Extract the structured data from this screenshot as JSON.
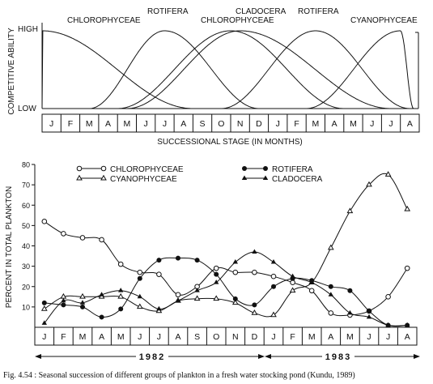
{
  "chart_data": [
    {
      "type": "line",
      "ylabel": "COMPETITIVE ABILITY",
      "xlabel": "SUCCESSIONAL STAGE (IN MONTHS)",
      "y_ticks": [
        "HIGH",
        "LOW"
      ],
      "categories": [
        "J",
        "F",
        "M",
        "A",
        "M",
        "J",
        "J",
        "A",
        "S",
        "O",
        "N",
        "D",
        "J",
        "F",
        "M",
        "A",
        "M",
        "J",
        "J",
        "A"
      ],
      "series": [
        {
          "name": "CHLOROPHYCEAE",
          "peak_months": [
            0,
            10
          ]
        },
        {
          "name": "ROTIFERA",
          "peak_months": [
            6.5,
            14.5
          ]
        },
        {
          "name": "CLADOCERA",
          "peak_months": [
            10.5
          ]
        },
        {
          "name": "CYANOPHYCEAE",
          "peak_months": [
            19
          ]
        }
      ]
    },
    {
      "type": "line",
      "ylabel": "PERCENT IN TOTAL PLANKTON",
      "xlabel": "",
      "ylim": [
        0,
        80
      ],
      "y_ticks": [
        10,
        20,
        30,
        40,
        50,
        60,
        70,
        80
      ],
      "categories": [
        "J",
        "F",
        "M",
        "A",
        "M",
        "J",
        "J",
        "A",
        "S",
        "O",
        "N",
        "D",
        "J",
        "F",
        "M",
        "A",
        "M",
        "J",
        "J",
        "A"
      ],
      "years": [
        "1982",
        "1983"
      ],
      "series": [
        {
          "name": "CHLOROPHYCEAE",
          "marker": "open-circle",
          "values": [
            52,
            46,
            44,
            43,
            31,
            27,
            26,
            16,
            20,
            29,
            27,
            27,
            25,
            22,
            18,
            7,
            6,
            8,
            15,
            29
          ]
        },
        {
          "name": "CYANOPHYCEAE",
          "marker": "open-triangle",
          "values": [
            9,
            15,
            15,
            15,
            15,
            10,
            8,
            13,
            14,
            14,
            12,
            7,
            6,
            18,
            22,
            39,
            57,
            70,
            75,
            58
          ]
        },
        {
          "name": "ROTIFERA",
          "marker": "filled-circle",
          "values": [
            12,
            11,
            10,
            5,
            9,
            24,
            33,
            34,
            33,
            26,
            14,
            11,
            20,
            24,
            23,
            20,
            18,
            8,
            1,
            1
          ]
        },
        {
          "name": "CLADOCERA",
          "marker": "filled-triangle",
          "values": [
            2,
            13,
            12,
            16,
            18,
            15,
            9,
            13,
            18,
            22,
            32,
            37,
            32,
            25,
            22,
            16,
            7,
            5,
            1,
            1
          ]
        }
      ]
    }
  ],
  "caption": "Fig. 4.54 : Seasonal succession of different groups of plankton in a fresh water stocking pond (Kundu, 1989)"
}
